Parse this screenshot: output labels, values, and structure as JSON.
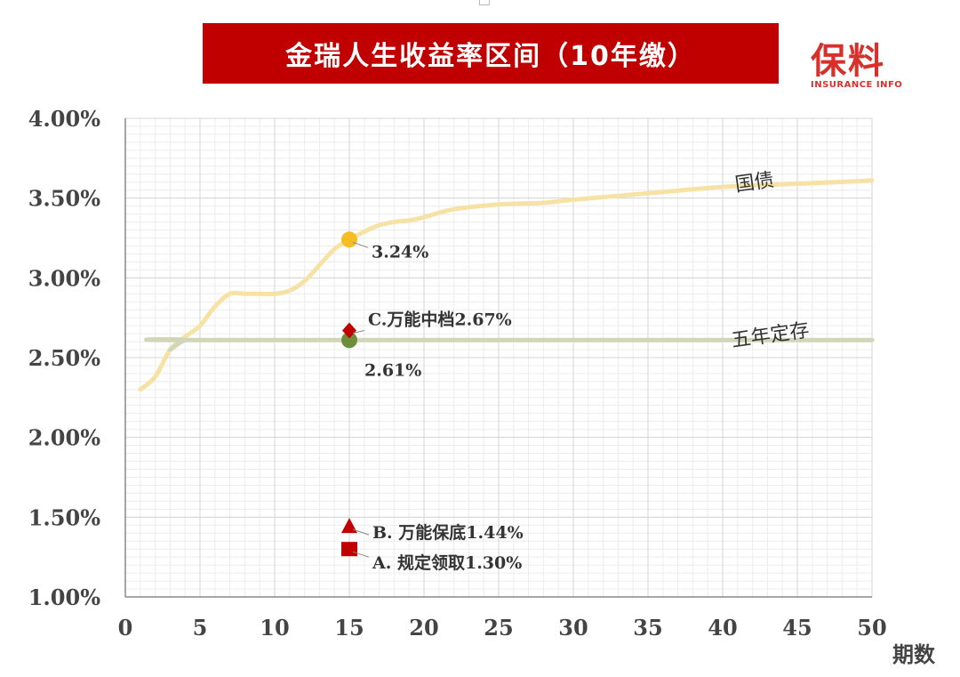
{
  "title": "金瑞人生收益率区间（10年缴）",
  "logo": {
    "main": "保料",
    "sub": "INSURANCE INFO"
  },
  "chart_data": {
    "type": "line",
    "xlabel": "期数",
    "ylabel": "",
    "xlim": [
      0,
      50
    ],
    "ylim": [
      1.0,
      4.0
    ],
    "grid": true,
    "x_ticks": [
      0,
      5,
      10,
      15,
      20,
      25,
      30,
      35,
      40,
      45,
      50
    ],
    "x_tick_labels": [
      "0",
      "5",
      "10",
      "15",
      "20",
      "25",
      "30",
      "35",
      "40",
      "45",
      "50"
    ],
    "y_ticks": [
      1.0,
      1.5,
      2.0,
      2.5,
      3.0,
      3.5,
      4.0
    ],
    "y_tick_labels": [
      "1.00%",
      "1.50%",
      "2.00%",
      "2.50%",
      "3.00%",
      "3.50%",
      "4.00%"
    ],
    "series": [
      {
        "name": "国债",
        "color": "#f7e2a6",
        "x": [
          1,
          2,
          3,
          4,
          5,
          6,
          7,
          8,
          9,
          10,
          11,
          12,
          13,
          14,
          15,
          16,
          17,
          18,
          19,
          20,
          22,
          25,
          28,
          30,
          35,
          40,
          45,
          50
        ],
        "values": [
          2.3,
          2.38,
          2.55,
          2.63,
          2.7,
          2.82,
          2.9,
          2.9,
          2.9,
          2.9,
          2.92,
          2.98,
          3.08,
          3.18,
          3.24,
          3.29,
          3.33,
          3.35,
          3.36,
          3.38,
          3.43,
          3.46,
          3.47,
          3.49,
          3.53,
          3.57,
          3.59,
          3.61
        ]
      },
      {
        "name": "五年定存",
        "color": "#d2d6b8",
        "x": [
          3,
          4,
          5,
          50
        ],
        "values": [
          2.55,
          2.61,
          2.61,
          2.61
        ]
      }
    ],
    "points": [
      {
        "label": "3.24%",
        "x": 15,
        "y": 3.24,
        "marker": "circle",
        "color": "#f4bd22"
      },
      {
        "label": "2.61%",
        "x": 15,
        "y": 2.61,
        "marker": "circle",
        "color": "#6b8e3a"
      },
      {
        "label": "C.万能中档2.67%",
        "x": 15,
        "y": 2.67,
        "marker": "diamond",
        "color": "#c00000"
      },
      {
        "label": "B. 万能保底1.44%",
        "x": 15,
        "y": 1.44,
        "marker": "triangle",
        "color": "#c00000"
      },
      {
        "label": "A. 规定领取1.30%",
        "x": 15,
        "y": 1.3,
        "marker": "square",
        "color": "#c00000"
      }
    ]
  }
}
